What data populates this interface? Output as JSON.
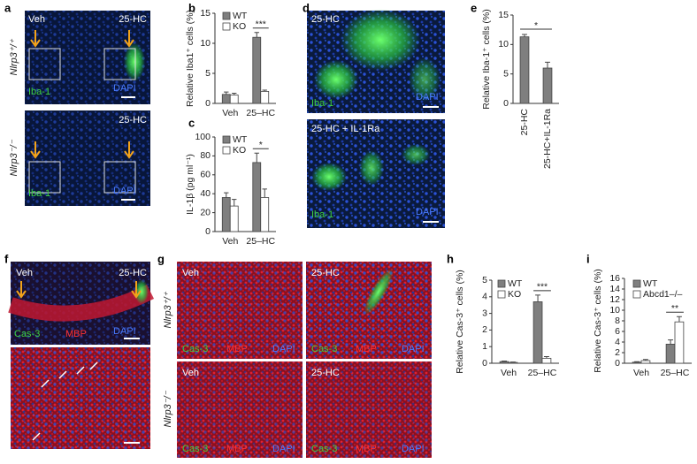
{
  "panels": {
    "a": {
      "label": "a",
      "rows": [
        {
          "genotype": "Nlrp3⁺/⁺",
          "left": "Veh",
          "right": "25-HC",
          "stain": "Iba-1",
          "counterstain": "DAPI"
        },
        {
          "genotype": "Nlrp3⁻/⁻",
          "right": "25-HC",
          "stain": "Iba-1",
          "counterstain": "DAPI"
        }
      ]
    },
    "d": {
      "label": "d",
      "rows": [
        {
          "condition": "25-HC",
          "stain": "Iba-1",
          "counterstain": "DAPI"
        },
        {
          "condition": "25-HC + IL-1Ra",
          "stain": "Iba-1",
          "counterstain": "DAPI"
        }
      ]
    },
    "f": {
      "label": "f",
      "left": "Veh",
      "right": "25-HC",
      "stain": "Cas-3",
      "stain2": "MBP",
      "counterstain": "DAPI"
    },
    "g": {
      "label": "g",
      "rows": [
        {
          "genotype": "Nlrp3⁺/⁺",
          "left": "Veh",
          "right": "25-HC"
        },
        {
          "genotype": "Nlrp3⁻/⁻",
          "left": "Veh",
          "right": "25-HC"
        }
      ],
      "stain": "Cas-3",
      "stain2": "MBP",
      "counterstain": "DAPI"
    }
  },
  "chart_data": [
    {
      "type": "bar",
      "label": "b",
      "ylabel": "Relative Iba1⁺ cells (%)",
      "categories": [
        "Veh",
        "25–HC"
      ],
      "series": [
        {
          "name": "WT",
          "color": "#7f7f7f",
          "values": [
            1.5,
            11
          ],
          "errors": [
            0.4,
            0.8
          ]
        },
        {
          "name": "KO",
          "color": "#ffffff",
          "values": [
            1.4,
            2.0
          ],
          "errors": [
            0.3,
            0.2
          ]
        }
      ],
      "ylim": [
        0,
        15
      ],
      "yticks": [
        0,
        5,
        10,
        15
      ],
      "annotation": "***"
    },
    {
      "type": "bar",
      "label": "c",
      "ylabel": "IL-1β (pg ml⁻¹)",
      "categories": [
        "Veh",
        "25–HC"
      ],
      "series": [
        {
          "name": "WT",
          "color": "#7f7f7f",
          "values": [
            36,
            73
          ],
          "errors": [
            5,
            10
          ]
        },
        {
          "name": "KO",
          "color": "#ffffff",
          "values": [
            27,
            36
          ],
          "errors": [
            7,
            9
          ]
        }
      ],
      "ylim": [
        0,
        100
      ],
      "yticks": [
        0,
        20,
        40,
        60,
        80,
        100
      ],
      "annotation": "*"
    },
    {
      "type": "bar",
      "label": "e",
      "ylabel": "Relative Iba-1⁺ cells (%)",
      "categories": [
        "25-HC",
        "25-HC+IL-1Ra"
      ],
      "series": [
        {
          "color": "#7f7f7f",
          "values": [
            11.3,
            6.0
          ],
          "errors": [
            0.4,
            1.0
          ]
        }
      ],
      "ylim": [
        0,
        15
      ],
      "yticks": [
        0,
        5,
        10,
        15
      ],
      "annotation": "*"
    },
    {
      "type": "bar",
      "label": "h",
      "ylabel": "Relative Cas-3⁺ cells (%)",
      "categories": [
        "Veh",
        "25–HC"
      ],
      "series": [
        {
          "name": "WT",
          "color": "#7f7f7f",
          "values": [
            0.1,
            3.7
          ],
          "errors": [
            0.03,
            0.4
          ]
        },
        {
          "name": "KO",
          "color": "#ffffff",
          "values": [
            0.05,
            0.3
          ],
          "errors": [
            0.02,
            0.1
          ]
        }
      ],
      "ylim": [
        0,
        5
      ],
      "yticks": [
        0,
        1,
        2,
        3,
        4,
        5
      ],
      "annotation": "***"
    },
    {
      "type": "bar",
      "label": "i",
      "ylabel": "Relative Cas-3⁺ cells (%)",
      "categories": [
        "Veh",
        "25–HC"
      ],
      "series": [
        {
          "name": "WT",
          "color": "#7f7f7f",
          "values": [
            0.2,
            3.6
          ],
          "errors": [
            0.1,
            0.8
          ]
        },
        {
          "name": "Abcd1–/–",
          "color": "#ffffff",
          "values": [
            0.5,
            7.8
          ],
          "errors": [
            0.2,
            1.0
          ]
        }
      ],
      "ylim": [
        0,
        16
      ],
      "yticks": [
        0,
        2,
        4,
        6,
        8,
        10,
        12,
        14,
        16
      ],
      "annotation": "**"
    }
  ]
}
